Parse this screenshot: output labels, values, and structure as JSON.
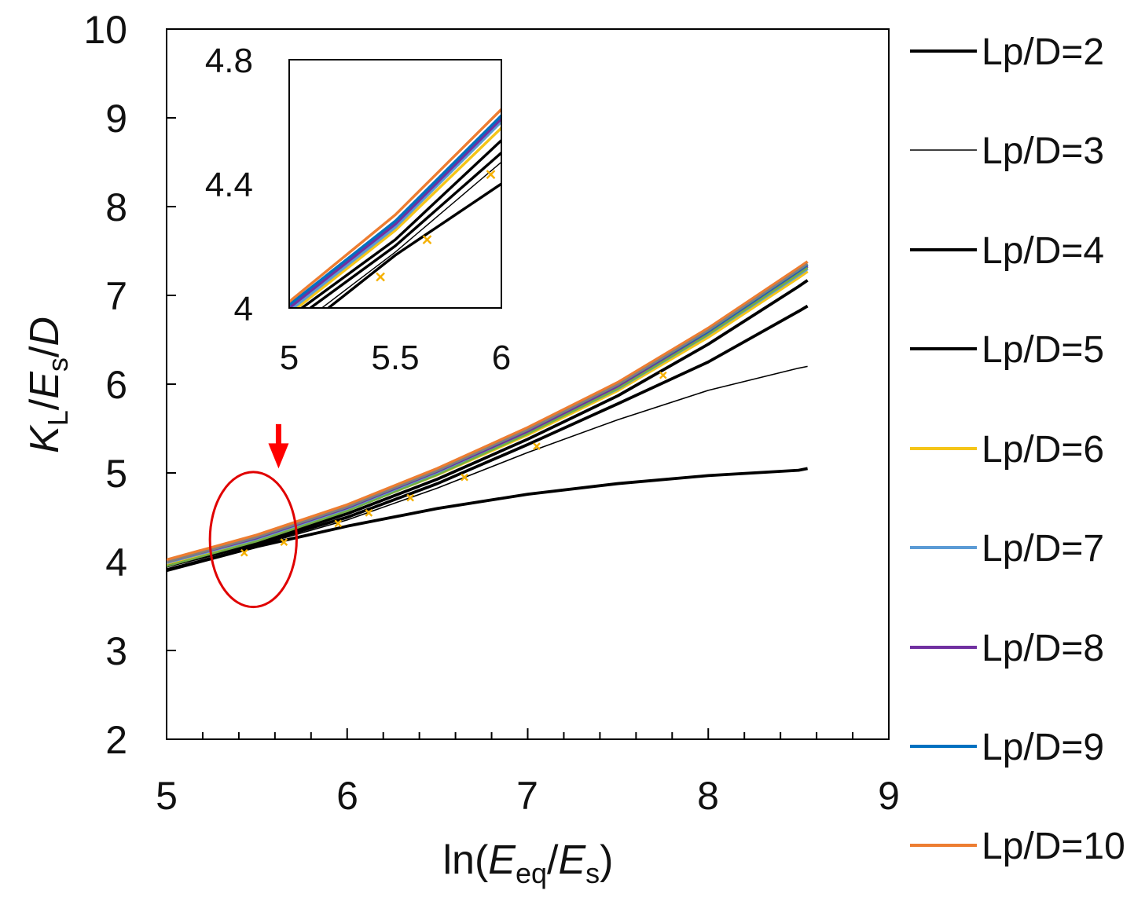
{
  "chart_data": {
    "type": "line",
    "title": "",
    "xlabel": {
      "prefix": "ln(",
      "v1": "E",
      "s1": "eq",
      "mid": "/",
      "v2": "E",
      "s2": "s",
      "suffix": ")"
    },
    "ylabel": {
      "v1": "K",
      "s1": "L",
      "mid1": "/",
      "v2": "E",
      "s2": "s",
      "mid2": "/",
      "v3": "D"
    },
    "xlim": [
      5,
      9
    ],
    "ylim": [
      2,
      10
    ],
    "xticks": [
      "5",
      "6",
      "7",
      "8",
      "9"
    ],
    "yticks": [
      "2",
      "3",
      "4",
      "5",
      "6",
      "7",
      "8",
      "9",
      "10"
    ],
    "grid": false,
    "legend_position": "right",
    "series": [
      {
        "name": "Lp/D=2",
        "color": "#000000",
        "width": "thick",
        "x": [
          5.0,
          5.5,
          6.0,
          6.5,
          7.0,
          7.5,
          8.0,
          8.5,
          8.55
        ],
        "y": [
          3.9,
          4.17,
          4.4,
          4.6,
          4.76,
          4.88,
          4.97,
          5.03,
          5.05
        ]
      },
      {
        "name": "Lp/D=3",
        "color": "#000000",
        "width": "thin",
        "x": [
          5.0,
          5.5,
          6.0,
          6.5,
          7.0,
          7.5,
          8.0,
          8.5,
          8.55
        ],
        "y": [
          3.92,
          4.18,
          4.47,
          4.83,
          5.23,
          5.6,
          5.93,
          6.18,
          6.2
        ]
      },
      {
        "name": "Lp/D=4",
        "color": "#000000",
        "width": "thick",
        "x": [
          5.0,
          5.5,
          6.0,
          6.5,
          7.0,
          7.5,
          8.0,
          8.5,
          8.55
        ],
        "y": [
          3.95,
          4.2,
          4.5,
          4.88,
          5.32,
          5.78,
          6.25,
          6.82,
          6.88
        ]
      },
      {
        "name": "Lp/D=5",
        "color": "#000000",
        "width": "thick",
        "x": [
          5.0,
          5.5,
          6.0,
          6.5,
          7.0,
          7.5,
          8.0,
          8.5,
          8.55
        ],
        "y": [
          3.97,
          4.22,
          4.54,
          4.93,
          5.38,
          5.87,
          6.45,
          7.1,
          7.17
        ]
      },
      {
        "name": "Lp/D=6",
        "color": "#f5c518",
        "width": "thick",
        "x": [
          5.0,
          5.5,
          6.0,
          6.5,
          7.0,
          7.5,
          8.0,
          8.5,
          8.55
        ],
        "y": [
          3.98,
          4.25,
          4.58,
          4.98,
          5.43,
          5.93,
          6.53,
          7.2,
          7.27
        ]
      },
      {
        "name": "Lp/D=7",
        "color": "#5b9bd5",
        "width": "thick",
        "x": [
          5.0,
          5.5,
          6.0,
          6.5,
          7.0,
          7.5,
          8.0,
          8.5,
          8.55
        ],
        "y": [
          3.99,
          4.26,
          4.6,
          5.0,
          5.45,
          5.95,
          6.56,
          7.23,
          7.3
        ]
      },
      {
        "name": "Lp/D=8",
        "color": "#7030a0",
        "width": "thick",
        "x": [
          5.0,
          5.5,
          6.0,
          6.5,
          7.0,
          7.5,
          8.0,
          8.5,
          8.55
        ],
        "y": [
          4.0,
          4.27,
          4.61,
          5.02,
          5.47,
          5.98,
          6.58,
          7.26,
          7.33
        ]
      },
      {
        "name": "Lp/D=9",
        "color": "#0070c0",
        "width": "thick",
        "x": [
          5.0,
          5.5,
          6.0,
          6.5,
          7.0,
          7.5,
          8.0,
          8.5,
          8.55
        ],
        "y": [
          4.01,
          4.28,
          4.62,
          5.03,
          5.49,
          6.0,
          6.6,
          7.28,
          7.35
        ]
      },
      {
        "name": "Lp/D=10",
        "color": "#ed7d31",
        "width": "thick",
        "x": [
          5.0,
          5.5,
          6.0,
          6.5,
          7.0,
          7.5,
          8.0,
          8.5,
          8.55
        ],
        "y": [
          4.02,
          4.3,
          4.64,
          5.05,
          5.51,
          6.02,
          6.63,
          7.31,
          7.38
        ]
      }
    ],
    "extra_series_colors": [
      "#70ad47",
      "#808080"
    ],
    "markers": {
      "color": "#f5b000",
      "symbol": "x",
      "x": [
        5.43,
        5.65,
        5.95,
        6.12,
        6.35,
        6.65,
        7.05,
        7.75
      ],
      "y": [
        4.1,
        4.22,
        4.43,
        4.55,
        4.72,
        4.95,
        5.3,
        6.1
      ]
    },
    "annotations": {
      "highlight_ellipse": {
        "x_center": 5.48,
        "y_center": 4.25,
        "x_radius": 0.24,
        "y_radius": 0.76,
        "color": "#e00000"
      },
      "arrow": {
        "x": 5.62,
        "y_from": 5.55,
        "y_to": 5.05,
        "color": "#ff0000"
      }
    },
    "inset": {
      "xlim": [
        5,
        6
      ],
      "ylim": [
        4,
        4.8
      ],
      "xticks": [
        "5",
        "5.5",
        "6"
      ],
      "yticks": [
        "4",
        "4.4",
        "4.8"
      ]
    }
  }
}
